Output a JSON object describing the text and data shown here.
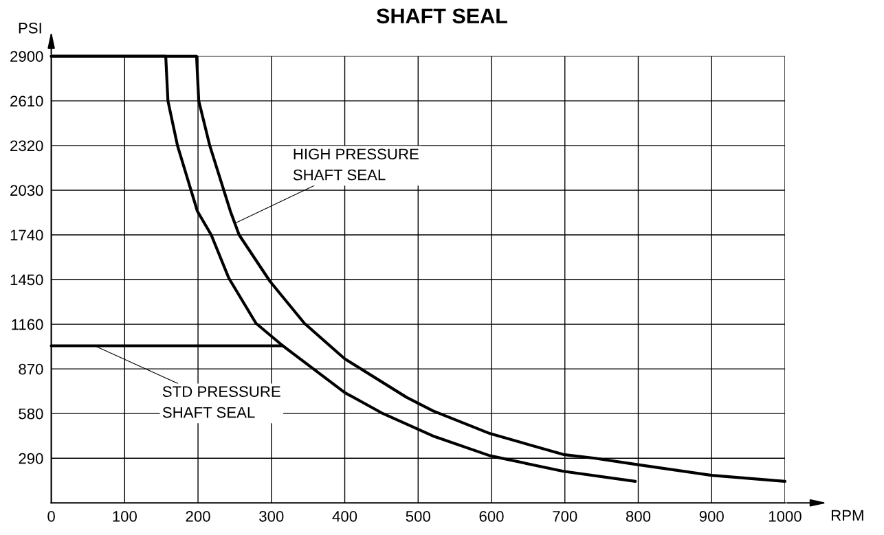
{
  "chart_data": {
    "type": "line",
    "title": "SHAFT SEAL",
    "xlabel": "RPM",
    "ylabel": "PSI",
    "series": [
      {
        "color": "#000000",
        "x": [
          0,
          198,
          201,
          216,
          244,
          256,
          298,
          345,
          400,
          484,
          520,
          598,
          698,
          741,
          798,
          900,
          1000
        ],
        "values": [
          2900,
          2900,
          2610,
          2320,
          1895,
          1740,
          1439,
          1166,
          935,
          686,
          598,
          450,
          314,
          290,
          249,
          179,
          140
        ]
      },
      {
        "color": "#000000",
        "x": [
          0,
          156,
          159,
          172,
          199,
          218,
          242,
          279,
          315,
          400,
          450,
          520,
          598,
          698,
          796
        ],
        "values": [
          2900,
          2900,
          2610,
          2320,
          1895,
          1740,
          1459,
          1166,
          1022,
          716,
          585,
          435,
          306,
          205,
          140
        ]
      },
      {
        "color": "#000000",
        "x": [
          0,
          315
        ],
        "values": [
          1020,
          1020
        ]
      }
    ],
    "xlim": [
      0,
      1000
    ],
    "ylim": [
      0,
      2900
    ],
    "xticks": [
      0,
      100,
      200,
      300,
      400,
      500,
      600,
      700,
      800,
      900,
      1000
    ],
    "yticks": [
      290,
      580,
      870,
      1160,
      1450,
      1740,
      2030,
      2320,
      2610,
      2900
    ],
    "grid": true,
    "legend": false,
    "marker": "none",
    "line_style": "solid",
    "annotations": [
      {
        "text": "HIGH PRESSURE\nSHAFT SEAL",
        "x": 251,
        "y": 1817
      },
      {
        "text": "STD PRESSURE\nSHAFT SEAL",
        "x": 60,
        "y": 1018
      }
    ]
  }
}
